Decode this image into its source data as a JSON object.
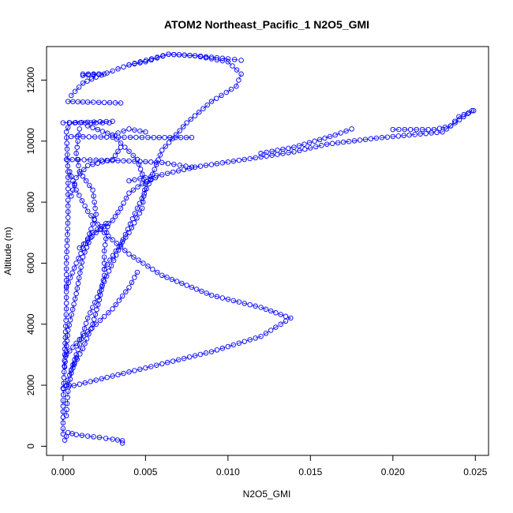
{
  "chart_data": {
    "type": "scatter",
    "title": "ATOM2 Northeast_Pacific_1 N2O5_GMI",
    "xlabel": "N2O5_GMI",
    "ylabel": "Altitude (m)",
    "xlim": [
      -0.001,
      0.0258
    ],
    "ylim": [
      -300,
      13100
    ],
    "x_ticks": [
      0.0,
      0.005,
      0.01,
      0.015,
      0.02,
      0.025
    ],
    "x_tick_labels": [
      "0.000",
      "0.005",
      "0.010",
      "0.015",
      "0.020",
      "0.025"
    ],
    "y_ticks": [
      0,
      2000,
      4000,
      6000,
      8000,
      10000,
      12000
    ],
    "y_tick_labels": [
      "0",
      "2000",
      "4000",
      "6000",
      "8000",
      "10000",
      "12000"
    ],
    "marker": "open-circle",
    "connector": "dashed-line",
    "color": "#0000ff",
    "grid": false,
    "legend": "none",
    "series": [
      {
        "points": [
          [
            0.0001,
            200
          ],
          [
            0.0003,
            450
          ],
          [
            0.0008,
            380
          ],
          [
            0.0015,
            330
          ],
          [
            0.0022,
            290
          ],
          [
            0.003,
            230
          ],
          [
            0.0036,
            180
          ],
          [
            0.0036,
            100
          ]
        ]
      },
      {
        "points": [
          [
            0.0,
            400
          ],
          [
            0.0,
            1500
          ],
          [
            0.0001,
            3000
          ],
          [
            0.0002,
            4500
          ],
          [
            0.0002,
            6000
          ],
          [
            0.0003,
            7500
          ],
          [
            0.0003,
            9000
          ],
          [
            0.0002,
            10300
          ],
          [
            0.0004,
            10600
          ],
          [
            0.002,
            10600
          ],
          [
            0.0028,
            10600
          ]
        ]
      },
      {
        "points": [
          [
            0.0,
            1900
          ],
          [
            0.003,
            2300
          ],
          [
            0.006,
            2700
          ],
          [
            0.009,
            3100
          ],
          [
            0.012,
            3600
          ],
          [
            0.0138,
            4200
          ],
          [
            0.012,
            4550
          ],
          [
            0.009,
            4950
          ],
          [
            0.006,
            5600
          ],
          [
            0.004,
            6300
          ],
          [
            0.0025,
            7000
          ],
          [
            0.0015,
            7700
          ],
          [
            0.0008,
            8400
          ],
          [
            0.0004,
            9000
          ]
        ]
      },
      {
        "points": [
          [
            0.0002,
            2000
          ],
          [
            0.0008,
            3000
          ],
          [
            0.0015,
            4200
          ],
          [
            0.0025,
            5400
          ],
          [
            0.0035,
            6600
          ],
          [
            0.0045,
            7800
          ],
          [
            0.0052,
            8600
          ],
          [
            0.006,
            9700
          ],
          [
            0.0075,
            10600
          ],
          [
            0.009,
            11300
          ],
          [
            0.0105,
            11800
          ],
          [
            0.0108,
            12200
          ],
          [
            0.01,
            12600
          ],
          [
            0.008,
            12800
          ],
          [
            0.0064,
            12850
          ],
          [
            0.005,
            12600
          ],
          [
            0.004,
            12500
          ],
          [
            0.003,
            12300
          ],
          [
            0.002,
            12100
          ],
          [
            0.0012,
            11900
          ],
          [
            0.0005,
            11500
          ]
        ]
      },
      {
        "points": [
          [
            0.004,
            12500
          ],
          [
            0.0064,
            12850
          ],
          [
            0.008,
            12800
          ],
          [
            0.01,
            12700
          ],
          [
            0.0108,
            12650
          ]
        ]
      },
      {
        "points": [
          [
            0.0012,
            12200
          ],
          [
            0.0025,
            12200
          ],
          [
            0.0012,
            12150
          ]
        ]
      },
      {
        "points": [
          [
            0.0003,
            11300
          ],
          [
            0.0015,
            11280
          ],
          [
            0.0035,
            11250
          ]
        ]
      },
      {
        "points": [
          [
            0.0,
            10600
          ],
          [
            0.0015,
            10620
          ],
          [
            0.003,
            10650
          ]
        ]
      },
      {
        "points": [
          [
            0.0005,
            10150
          ],
          [
            0.003,
            10130
          ],
          [
            0.0055,
            10120
          ],
          [
            0.0078,
            10120
          ]
        ]
      },
      {
        "points": [
          [
            0.003,
            10200
          ],
          [
            0.004,
            10400
          ],
          [
            0.005,
            10300
          ]
        ]
      },
      {
        "points": [
          [
            0.0002,
            9400
          ],
          [
            0.002,
            9380
          ],
          [
            0.004,
            9350
          ],
          [
            0.006,
            9300
          ],
          [
            0.0078,
            9150
          ]
        ]
      },
      {
        "points": [
          [
            0.004,
            8700
          ],
          [
            0.006,
            8900
          ],
          [
            0.008,
            9150
          ],
          [
            0.011,
            9400
          ],
          [
            0.014,
            9650
          ],
          [
            0.016,
            9900
          ],
          [
            0.019,
            10100
          ],
          [
            0.023,
            10300
          ],
          [
            0.0248,
            11000
          ]
        ]
      },
      {
        "points": [
          [
            0.012,
            9600
          ],
          [
            0.014,
            9800
          ],
          [
            0.0165,
            10200
          ],
          [
            0.0175,
            10400
          ]
        ]
      },
      {
        "points": [
          [
            0.02,
            10380
          ],
          [
            0.0225,
            10380
          ],
          [
            0.0235,
            10500
          ],
          [
            0.024,
            10800
          ],
          [
            0.0249,
            11000
          ]
        ]
      },
      {
        "points": [
          [
            0.0002,
            3000
          ],
          [
            0.001,
            3500
          ],
          [
            0.002,
            4000
          ],
          [
            0.003,
            4500
          ],
          [
            0.004,
            5200
          ],
          [
            0.0045,
            5700
          ]
        ]
      },
      {
        "points": [
          [
            0.0005,
            2500
          ],
          [
            0.0012,
            3200
          ],
          [
            0.0018,
            4000
          ],
          [
            0.0022,
            4800
          ],
          [
            0.0025,
            5600
          ],
          [
            0.0025,
            6400
          ],
          [
            0.0027,
            7200
          ]
        ]
      },
      {
        "points": [
          [
            0.0002,
            5200
          ],
          [
            0.0008,
            6000
          ],
          [
            0.0015,
            6800
          ],
          [
            0.002,
            7600
          ],
          [
            0.0018,
            8400
          ],
          [
            0.001,
            9000
          ],
          [
            0.0008,
            9600
          ],
          [
            0.001,
            10400
          ]
        ]
      },
      {
        "points": [
          [
            0.001,
            6500
          ],
          [
            0.002,
            7000
          ],
          [
            0.003,
            7400
          ],
          [
            0.0035,
            7800
          ],
          [
            0.004,
            8300
          ],
          [
            0.0048,
            8600
          ],
          [
            0.0056,
            8800
          ]
        ]
      },
      {
        "points": [
          [
            0.0025,
            5800
          ],
          [
            0.0032,
            6400
          ],
          [
            0.004,
            7000
          ],
          [
            0.0048,
            7800
          ],
          [
            0.005,
            8600
          ],
          [
            0.0045,
            9400
          ],
          [
            0.003,
            10200
          ],
          [
            0.0015,
            10500
          ]
        ]
      },
      {
        "points": [
          [
            0.0005,
            8200
          ],
          [
            0.0008,
            8800
          ],
          [
            0.0015,
            9200
          ],
          [
            0.003,
            9400
          ],
          [
            0.0035,
            9800
          ]
        ]
      },
      {
        "points": [
          [
            0.0001,
            2600
          ],
          [
            0.0003,
            3800
          ],
          [
            0.0008,
            5000
          ],
          [
            0.0012,
            6200
          ],
          [
            0.0018,
            7000
          ],
          [
            0.0026,
            7300
          ]
        ]
      },
      {
        "points": [
          [
            0.0002,
            1000
          ],
          [
            0.0003,
            1800
          ],
          [
            0.0005,
            2400
          ],
          [
            0.0008,
            2900
          ]
        ]
      }
    ]
  }
}
